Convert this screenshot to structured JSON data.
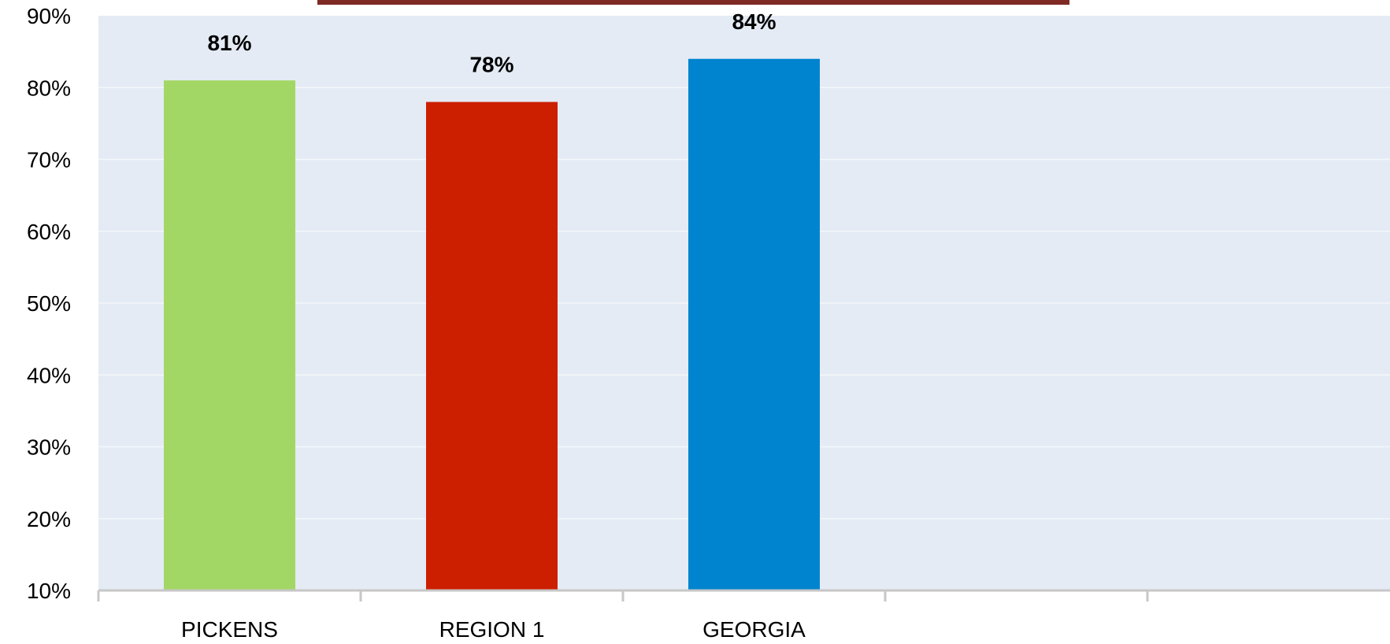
{
  "chart_data": {
    "type": "bar",
    "categories": [
      "PICKENS",
      "REGION 1",
      "GEORGIA",
      "",
      ""
    ],
    "series": [
      {
        "values": [
          0.81,
          0.78,
          0.84,
          null,
          null
        ],
        "colors": [
          "#a3d765",
          "#cc1f00",
          "#0084cf"
        ],
        "data_labels": [
          "81%",
          "78%",
          "84%"
        ]
      }
    ],
    "ylim": [
      0.1,
      0.9
    ],
    "yticks": [
      {
        "value": 0.9,
        "label": "90%"
      },
      {
        "value": 0.8,
        "label": "80%"
      },
      {
        "value": 0.7,
        "label": "70%"
      },
      {
        "value": 0.6,
        "label": "60%"
      },
      {
        "value": 0.5,
        "label": "50%"
      },
      {
        "value": 0.4,
        "label": "40%"
      },
      {
        "value": 0.3,
        "label": "30%"
      },
      {
        "value": 0.2,
        "label": "20%"
      },
      {
        "value": 0.1,
        "label": "10%"
      }
    ],
    "title": "",
    "xlabel": "",
    "ylabel": "",
    "grid": true,
    "legend": "none",
    "plot_background": "#e4ebf4",
    "gridline_color": "#f4f7fa",
    "axis_color": "#c7c7c7",
    "title_rule_color": "#7f2a25"
  }
}
